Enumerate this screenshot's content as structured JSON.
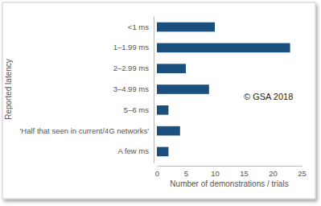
{
  "chart_data": {
    "type": "bar",
    "orientation": "horizontal",
    "categories": [
      "<1 ms",
      "1–1.99 ms",
      "2–2.99 ms",
      "3–4.99 ms",
      "5–6 ms",
      "'Half that seen in current/4G networks'",
      "A few ms"
    ],
    "values": [
      10,
      23,
      5,
      9,
      2,
      4,
      2
    ],
    "color": "#1b4f7e",
    "xlim": [
      0,
      25
    ],
    "xticks": [
      0,
      5,
      10,
      15,
      20,
      25
    ],
    "xlabel": "Number of demonstrations / trials",
    "ylabel": "Reported latency",
    "annotations": [
      "© GSA 2018"
    ],
    "grid": false
  }
}
